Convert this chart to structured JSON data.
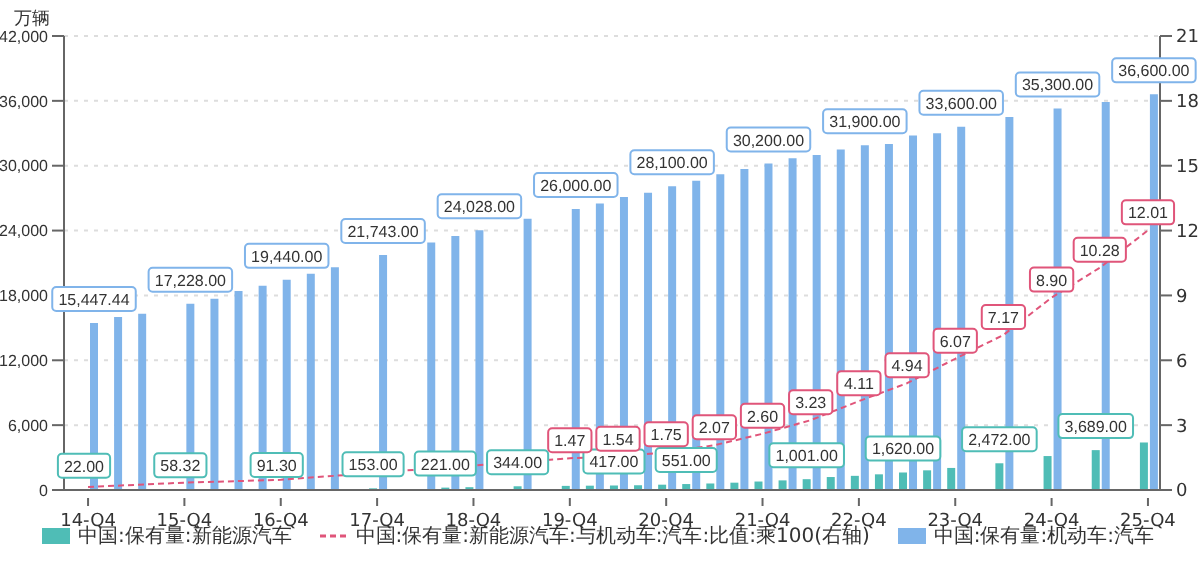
{
  "chart_data": {
    "type": "bar",
    "ylabel": "万辆",
    "categories": [
      "14-Q4",
      null,
      null,
      null,
      "15-Q4",
      null,
      null,
      null,
      "16-Q4",
      null,
      null,
      null,
      "17-Q4",
      null,
      null,
      null,
      "18-Q4",
      null,
      null,
      null,
      "19-Q4",
      null,
      null,
      null,
      "20-Q4",
      null,
      null,
      null,
      "21-Q4",
      null,
      null,
      null,
      "22-Q4",
      null,
      null,
      null,
      "23-Q4",
      null,
      null,
      null,
      "24-Q4",
      null,
      null,
      null,
      "25-Q4"
    ],
    "series": [
      {
        "name": "中国:保有量:新能源汽车",
        "type": "bar",
        "color": "#4fbdb6",
        "values": [
          22,
          30,
          40,
          null,
          58.32,
          60,
          70,
          80,
          91.3,
          null,
          null,
          null,
          153,
          null,
          null,
          221,
          261,
          null,
          344,
          null,
          381,
          400,
          417,
          440,
          492,
          551,
          603,
          678,
          784,
          890,
          1001,
          1200,
          1310,
          1450,
          1620,
          1820,
          2041,
          null,
          2472,
          null,
          3140,
          null,
          3689,
          null,
          4396
        ],
        "value_labels": [
          "22.00",
          null,
          null,
          null,
          "58.32",
          null,
          null,
          null,
          "91.30",
          null,
          null,
          null,
          "153.00",
          null,
          null,
          "221.00",
          null,
          null,
          "344.00",
          null,
          null,
          null,
          "417.00",
          null,
          null,
          "551.00",
          null,
          null,
          null,
          null,
          "1,001.00",
          null,
          null,
          null,
          "1,620.00",
          null,
          null,
          null,
          "2,472.00",
          null,
          null,
          null,
          "3,689.00",
          null,
          null
        ]
      },
      {
        "name": "中国:保有量:新能源汽车:与机动车:汽车:比值:乘100(右轴)",
        "type": "line",
        "axis": "y2",
        "color": "#e0557a",
        "line_style": "dashed",
        "marker": "none",
        "values": [
          0.14,
          null,
          null,
          null,
          0.34,
          null,
          null,
          null,
          0.47,
          null,
          null,
          null,
          null,
          null,
          null,
          null,
          null,
          null,
          null,
          null,
          1.47,
          null,
          1.54,
          null,
          1.75,
          null,
          2.07,
          null,
          2.6,
          null,
          3.23,
          null,
          4.11,
          null,
          4.94,
          null,
          6.07,
          null,
          7.17,
          null,
          8.9,
          null,
          10.28,
          null,
          12.01
        ],
        "value_labels": [
          null,
          null,
          null,
          null,
          null,
          null,
          null,
          null,
          null,
          null,
          null,
          null,
          null,
          null,
          null,
          null,
          null,
          null,
          null,
          null,
          "1.47",
          null,
          "1.54",
          null,
          "1.75",
          null,
          "2.07",
          null,
          "2.60",
          null,
          "3.23",
          null,
          "4.11",
          null,
          "4.94",
          null,
          "6.07",
          null,
          "7.17",
          null,
          "8.90",
          null,
          "10.28",
          null,
          "12.01"
        ]
      },
      {
        "name": "中国:保有量:机动车:汽车",
        "type": "bar",
        "color": "#80b4ea",
        "values": [
          15447.44,
          16000,
          16300,
          null,
          17228,
          17700,
          18400,
          18900,
          19440,
          20000,
          20600,
          null,
          21743,
          null,
          22900,
          23500,
          24028,
          null,
          25100,
          null,
          26000,
          26500,
          27100,
          27500,
          28100,
          28600,
          29200,
          29700,
          30200,
          30700,
          31000,
          31500,
          31900,
          32000,
          32800,
          33000,
          33600,
          null,
          34500,
          null,
          35300,
          null,
          35900,
          null,
          36600
        ],
        "value_labels": [
          "15,447.44",
          null,
          null,
          null,
          "17,228.00",
          null,
          null,
          null,
          "19,440.00",
          null,
          null,
          null,
          "21,743.00",
          null,
          null,
          null,
          "24,028.00",
          null,
          null,
          null,
          "26,000.00",
          null,
          null,
          null,
          "28,100.00",
          null,
          null,
          null,
          "30,200.00",
          null,
          null,
          null,
          "31,900.00",
          null,
          null,
          null,
          "33,600.00",
          null,
          null,
          null,
          "35,300.00",
          null,
          null,
          null,
          "36,600.00"
        ]
      }
    ],
    "ylim": [
      0,
      42000
    ],
    "yticks": [
      0,
      {
        "value": 6000,
        "label": "6,000"
      },
      {
        "value": 12000,
        "label": "12,000"
      },
      {
        "value": 18000,
        "label": "18,000"
      },
      {
        "value": 24000,
        "label": "24,000"
      },
      {
        "value": 30000,
        "label": "30,000"
      },
      {
        "value": 36000,
        "label": "36,000"
      },
      {
        "value": 42000,
        "label": "42,000"
      }
    ],
    "y2lim": [
      0,
      21
    ],
    "y2ticks": [
      0,
      3,
      6,
      9,
      12,
      15,
      18,
      21
    ],
    "grid": "y",
    "legend": "bottom"
  }
}
